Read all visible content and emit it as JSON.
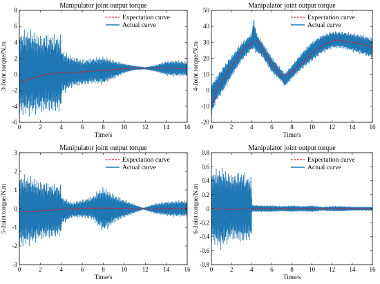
{
  "figure": {
    "background": "#ffffff",
    "actual_color": "#1f77b4",
    "expectation_color": "#e8141c",
    "axis_color": "#000000"
  },
  "chart_data": [
    {
      "type": "line",
      "title": "Manipulator joint output torque",
      "xlabel": "Time/s",
      "ylabel": "3-Joint torque/N.m",
      "xlim": [
        0,
        16
      ],
      "ylim": [
        -6,
        8
      ],
      "xticks": [
        0,
        2,
        4,
        6,
        8,
        10,
        12,
        14,
        16
      ],
      "yticks": [
        -6,
        -4,
        -2,
        0,
        2,
        4,
        6,
        8
      ],
      "legend_position": "top-right",
      "series": [
        {
          "name": "Expectation curve",
          "style": "dashed",
          "x": [
            0,
            1,
            2,
            3,
            4,
            5,
            6,
            7,
            8,
            9,
            10,
            11,
            12,
            13,
            14,
            15,
            16
          ],
          "y": [
            -1.0,
            -0.6,
            -0.2,
            0.1,
            0.2,
            0.25,
            0.3,
            0.4,
            0.5,
            0.6,
            0.7,
            0.75,
            0.8,
            0.8,
            0.8,
            0.75,
            0.7
          ]
        },
        {
          "name": "Actual curve",
          "style": "solid",
          "x": [
            0,
            1,
            2,
            3,
            3.98,
            4.02,
            5,
            6,
            7,
            8,
            9,
            10,
            11,
            12,
            13,
            14,
            15,
            16
          ],
          "upper": [
            5.5,
            5.8,
            5.0,
            5.2,
            5.0,
            3.2,
            2.3,
            1.9,
            2.1,
            2.3,
            1.8,
            1.4,
            1.1,
            0.9,
            1.2,
            1.7,
            1.8,
            1.6
          ],
          "lower": [
            -5.2,
            -5.3,
            -4.9,
            -4.8,
            -4.8,
            -2.7,
            -1.7,
            -1.4,
            -1.2,
            -1.3,
            -0.6,
            0.1,
            0.5,
            0.6,
            0.3,
            -0.2,
            -0.3,
            -0.2
          ]
        }
      ]
    },
    {
      "type": "line",
      "title": "Manipulator joint output torque",
      "xlabel": "Time/s",
      "ylabel": "4-Joint torque/N.m",
      "xlim": [
        0,
        16
      ],
      "ylim": [
        -20,
        50
      ],
      "xticks": [
        0,
        2,
        4,
        6,
        8,
        10,
        12,
        14,
        16
      ],
      "yticks": [
        -20,
        -10,
        0,
        10,
        20,
        30,
        40,
        50
      ],
      "legend_position": "top-right",
      "series": [
        {
          "name": "Expectation curve",
          "style": "dashed",
          "x": [
            0,
            0.5,
            1,
            2,
            3,
            4,
            4.5,
            5,
            6,
            7,
            8,
            9,
            10,
            11,
            12,
            12.5,
            13,
            14,
            15,
            16
          ],
          "y": [
            -10,
            0,
            5,
            15,
            24,
            30,
            31,
            27,
            16,
            9,
            11,
            17,
            23,
            28,
            31,
            31.5,
            31,
            30,
            29,
            27
          ]
        },
        {
          "name": "Actual curve",
          "style": "solid",
          "x": [
            0,
            0.5,
            1,
            2,
            3,
            4,
            4.2,
            4.5,
            5,
            6,
            7,
            7.3,
            8,
            9,
            10,
            11,
            12,
            13,
            14,
            15,
            16
          ],
          "upper": [
            5,
            9,
            14,
            22,
            30,
            36,
            46,
            36,
            31,
            21,
            13,
            11,
            16,
            24,
            31,
            35,
            37,
            37,
            36,
            35,
            33
          ],
          "lower": [
            -16,
            -7,
            -3,
            8,
            18,
            25,
            24,
            23,
            21,
            11,
            5,
            2,
            7,
            13,
            18,
            23,
            26,
            26,
            24,
            22,
            20
          ]
        }
      ]
    },
    {
      "type": "line",
      "title": "Manipulator joint output torque",
      "xlabel": "Time/s",
      "ylabel": "5-Joint torque/N.m",
      "xlim": [
        0,
        16
      ],
      "ylim": [
        -3,
        3
      ],
      "xticks": [
        0,
        2,
        4,
        6,
        8,
        10,
        12,
        14,
        16
      ],
      "yticks": [
        -3,
        -2,
        -1,
        0,
        1,
        2,
        3
      ],
      "legend_position": "top-right",
      "series": [
        {
          "name": "Expectation curve",
          "style": "dashed",
          "x": [
            0,
            2,
            4,
            6,
            8,
            10,
            12,
            14,
            16
          ],
          "y": [
            -0.18,
            -0.12,
            -0.04,
            0.02,
            0.03,
            0.01,
            -0.01,
            0.0,
            0.02
          ]
        },
        {
          "name": "Actual curve",
          "style": "solid",
          "x": [
            0,
            1,
            2,
            3,
            3.98,
            4.02,
            5,
            6,
            7,
            7.5,
            8,
            8.5,
            9,
            10,
            11,
            11.8,
            12.5,
            13,
            14,
            15,
            16
          ],
          "upper": [
            1.9,
            1.8,
            1.5,
            1.4,
            1.3,
            0.7,
            0.35,
            0.5,
            0.7,
            1.0,
            1.2,
            1.0,
            0.8,
            0.5,
            0.25,
            0.05,
            0.2,
            0.3,
            0.4,
            0.45,
            0.45
          ],
          "lower": [
            -2.1,
            -2.0,
            -1.7,
            -1.6,
            -1.5,
            -0.9,
            -0.5,
            -0.5,
            -0.6,
            -1.0,
            -1.25,
            -1.1,
            -0.8,
            -0.5,
            -0.25,
            -0.05,
            -0.2,
            -0.3,
            -0.4,
            -0.45,
            -0.45
          ]
        }
      ]
    },
    {
      "type": "line",
      "title": "Manipulator joint output torque",
      "xlabel": "Time/s",
      "ylabel": "6-Joint torque/N.m",
      "xlim": [
        0,
        16
      ],
      "ylim": [
        -0.8,
        0.8
      ],
      "xticks": [
        0,
        2,
        4,
        6,
        8,
        10,
        12,
        14,
        16
      ],
      "yticks": [
        -0.8,
        -0.6,
        -0.4,
        -0.2,
        0,
        0.2,
        0.4,
        0.6,
        0.8
      ],
      "legend_position": "top-right",
      "series": [
        {
          "name": "Expectation curve",
          "style": "dashed",
          "x": [
            0,
            2,
            4,
            6,
            8,
            10,
            12,
            14,
            16
          ],
          "y": [
            0.0,
            -0.01,
            0.0,
            0.0,
            0.0,
            0.0,
            0.0,
            0.0,
            0.0
          ]
        },
        {
          "name": "Actual curve",
          "style": "solid",
          "x": [
            0,
            1,
            2,
            3,
            3.98,
            4.02,
            5,
            6,
            7,
            8,
            9,
            10,
            11,
            12,
            13,
            14,
            15,
            16
          ],
          "upper": [
            0.55,
            0.6,
            0.5,
            0.55,
            0.45,
            0.06,
            0.05,
            0.05,
            0.04,
            0.05,
            0.04,
            0.05,
            0.03,
            0.04,
            0.04,
            0.03,
            0.03,
            0.03
          ],
          "lower": [
            -0.5,
            -0.6,
            -0.45,
            -0.5,
            -0.45,
            -0.05,
            -0.05,
            -0.05,
            -0.04,
            -0.05,
            -0.04,
            -0.05,
            -0.03,
            -0.04,
            -0.04,
            -0.03,
            -0.03,
            -0.03
          ]
        }
      ]
    }
  ]
}
